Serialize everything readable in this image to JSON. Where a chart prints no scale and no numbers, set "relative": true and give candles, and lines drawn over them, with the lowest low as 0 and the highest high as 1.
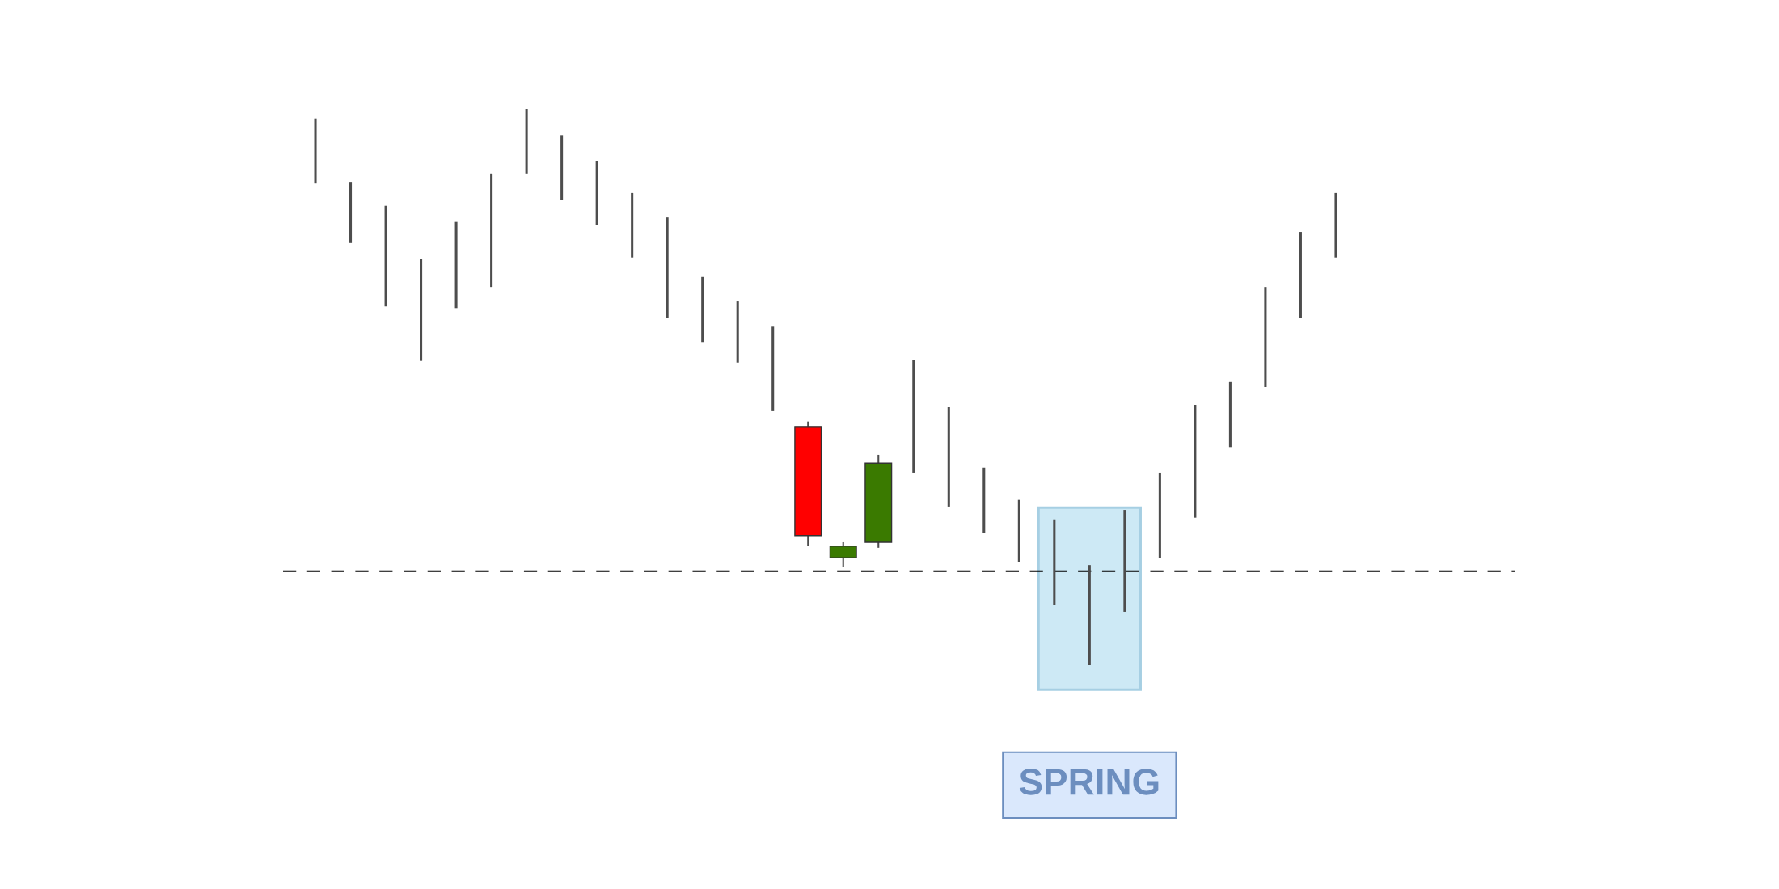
{
  "chart_data": {
    "type": "candlestick",
    "relative": true,
    "categories": [
      null,
      null,
      null,
      null,
      null,
      null,
      null,
      null,
      null,
      null,
      null,
      null,
      null,
      null,
      null,
      null,
      null,
      null,
      null,
      null,
      null,
      null,
      null,
      null,
      null,
      null,
      null,
      null,
      null,
      null
    ],
    "ohlc": [
      [
        0.983,
        0.983,
        0.866,
        0.866
      ],
      [
        0.869,
        0.869,
        0.759,
        0.759
      ],
      [
        0.826,
        0.826,
        0.645,
        0.645
      ],
      [
        0.73,
        0.73,
        0.547,
        0.547
      ],
      [
        0.797,
        0.797,
        0.642,
        0.642
      ],
      [
        0.884,
        0.884,
        0.68,
        0.68
      ],
      [
        1.0,
        1.0,
        0.884,
        0.884
      ],
      [
        0.953,
        0.953,
        0.837,
        0.837
      ],
      [
        0.907,
        0.907,
        0.791,
        0.791
      ],
      [
        0.849,
        0.849,
        0.733,
        0.733
      ],
      [
        0.805,
        0.805,
        0.625,
        0.625
      ],
      [
        0.698,
        0.698,
        0.581,
        0.581
      ],
      [
        0.654,
        0.654,
        0.544,
        0.544
      ],
      [
        0.61,
        0.61,
        0.458,
        0.458
      ],
      [
        0.429,
        0.438,
        0.215,
        0.233
      ],
      [
        0.193,
        0.221,
        0.176,
        0.214
      ],
      [
        0.221,
        0.378,
        0.211,
        0.363
      ],
      [
        0.549,
        0.549,
        0.346,
        0.346
      ],
      [
        0.465,
        0.465,
        0.285,
        0.285
      ],
      [
        0.355,
        0.355,
        0.238,
        0.238
      ],
      [
        0.297,
        0.297,
        0.186,
        0.186
      ],
      [
        0.262,
        0.262,
        0.108,
        0.108
      ],
      [
        0.18,
        0.18,
        0.0,
        0.0
      ],
      [
        0.279,
        0.279,
        0.096,
        0.096
      ],
      [
        0.346,
        0.346,
        0.192,
        0.192
      ],
      [
        0.468,
        0.468,
        0.265,
        0.265
      ],
      [
        0.509,
        0.509,
        0.392,
        0.392
      ],
      [
        0.68,
        0.68,
        0.5,
        0.5
      ],
      [
        0.779,
        0.779,
        0.625,
        0.625
      ],
      [
        0.849,
        0.849,
        0.733,
        0.733
      ]
    ],
    "colors": [
      "#4d4d4d",
      "#4d4d4d",
      "#4d4d4d",
      "#4d4d4d",
      "#4d4d4d",
      "#4d4d4d",
      "#4d4d4d",
      "#4d4d4d",
      "#4d4d4d",
      "#4d4d4d",
      "#4d4d4d",
      "#4d4d4d",
      "#4d4d4d",
      "#4d4d4d",
      "#ff0000",
      "#3a7a00",
      "#3a7a00",
      "#4d4d4d",
      "#4d4d4d",
      "#4d4d4d",
      "#4d4d4d",
      "#4d4d4d",
      "#4d4d4d",
      "#4d4d4d",
      "#4d4d4d",
      "#4d4d4d",
      "#4d4d4d",
      "#4d4d4d",
      "#4d4d4d",
      "#4d4d4d"
    ],
    "ref_lines": [
      {
        "axis": "y",
        "value": 0.169,
        "color": "#000000",
        "line_style": "dashed"
      }
    ],
    "annotations": [
      "SPRING"
    ]
  }
}
